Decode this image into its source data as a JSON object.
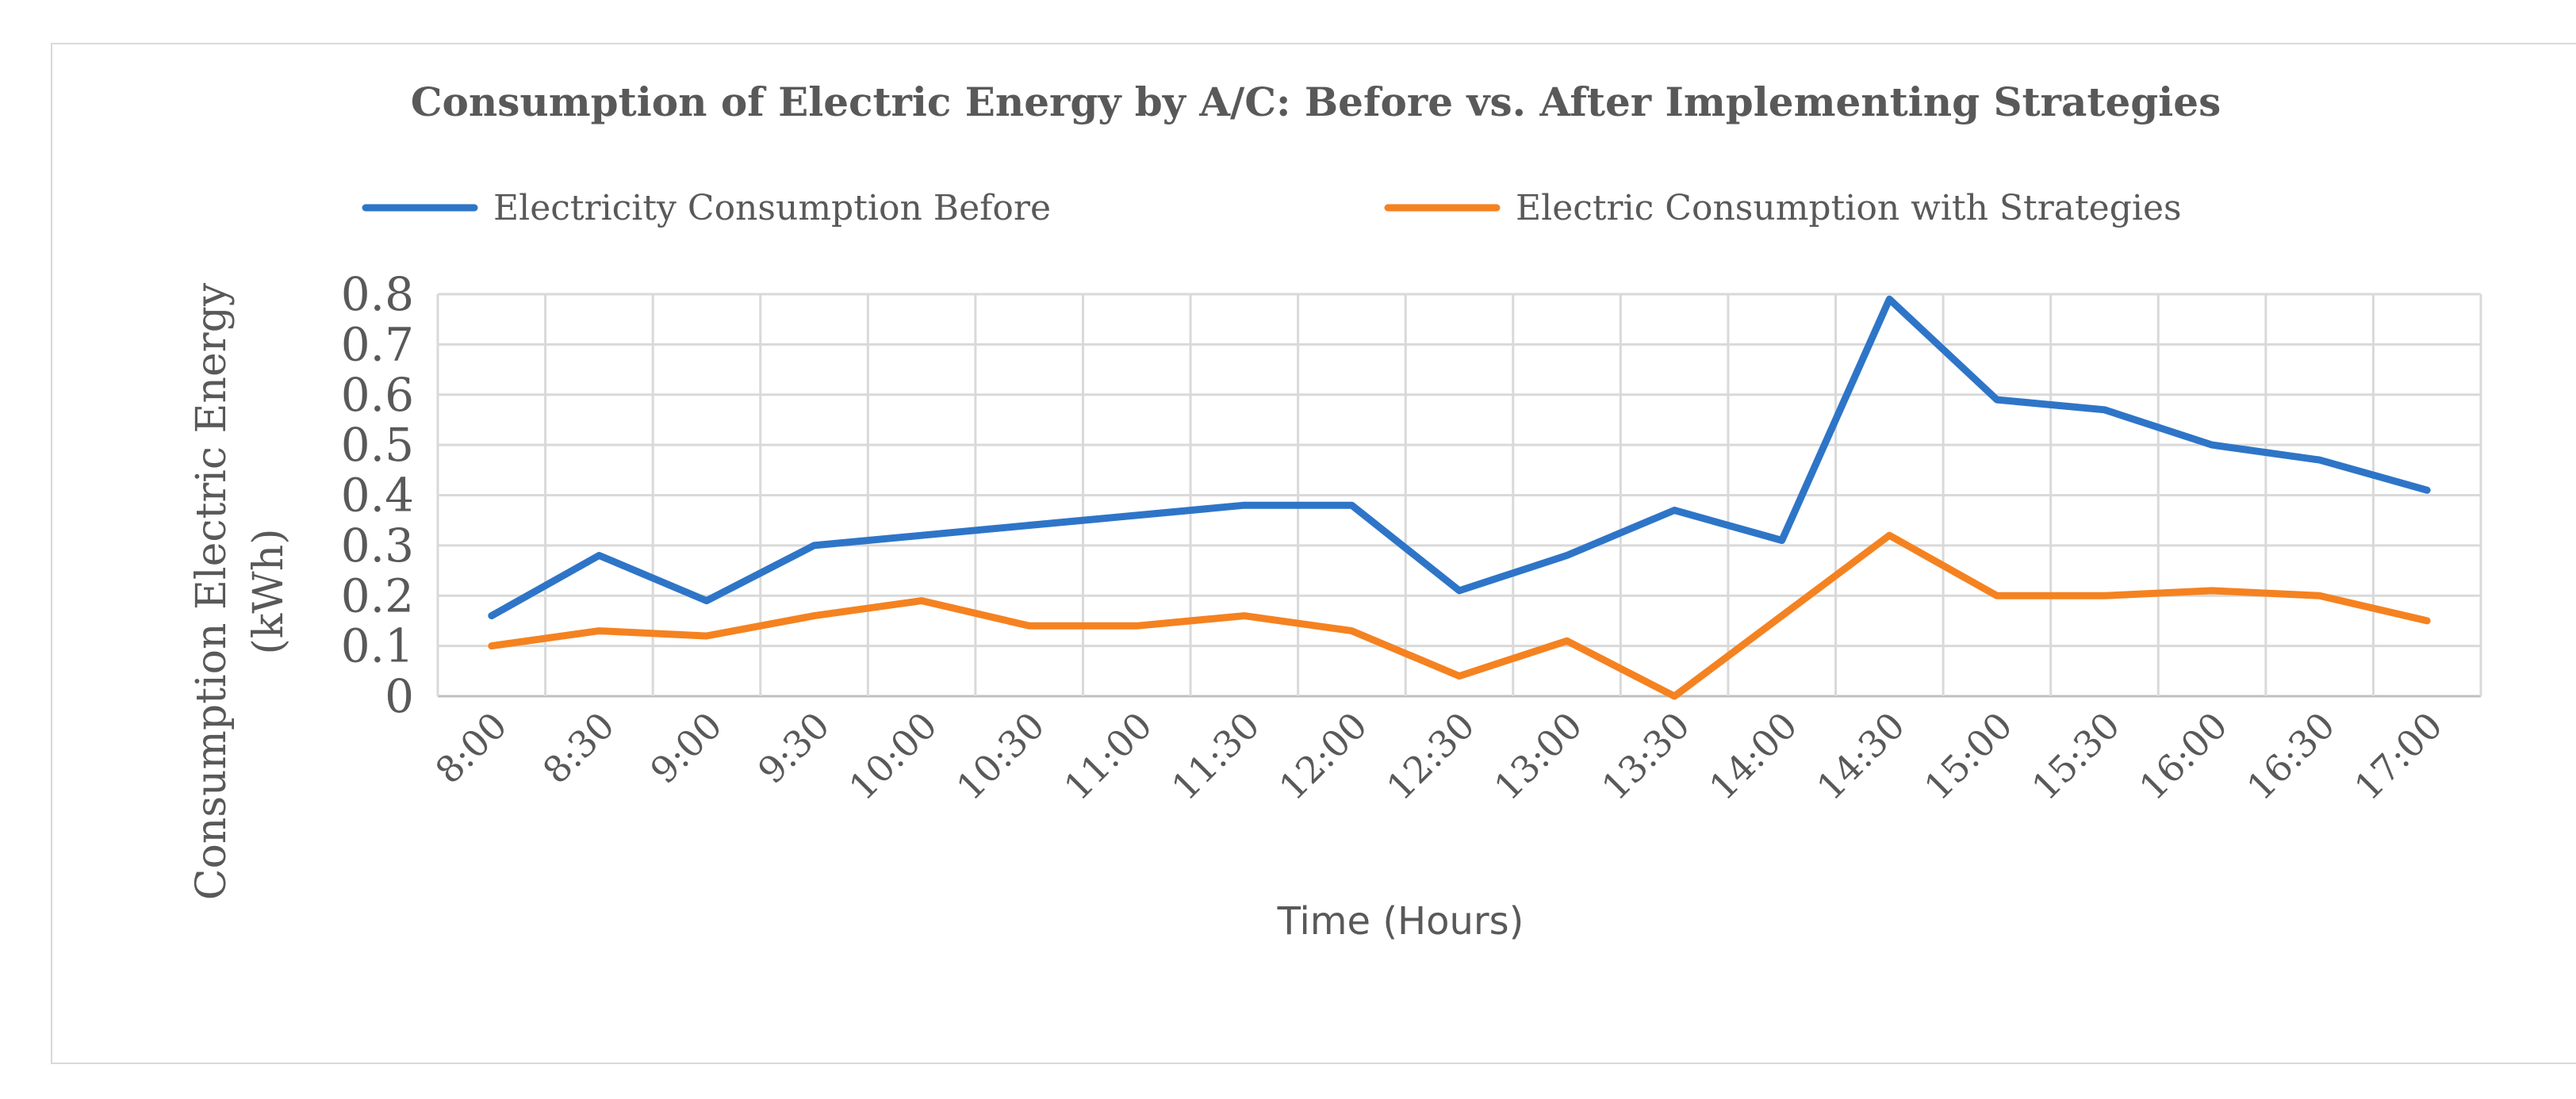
{
  "chart_data": {
    "type": "line",
    "title": "Consumption of Electric Energy by A/C: Before vs. After Implementing Strategies",
    "xlabel": "Time (Hours)",
    "ylabel_line1": "Consumption Electric Energy",
    "ylabel_line2": "(kWh)",
    "categories": [
      "8:00",
      "8:30",
      "9:00",
      "9:30",
      "10:00",
      "10:30",
      "11:00",
      "11:30",
      "12:00",
      "12:30",
      "13:00",
      "13:30",
      "14:00",
      "14:30",
      "15:00",
      "15:30",
      "16:00",
      "16:30",
      "17:00"
    ],
    "ylim": [
      0,
      0.8
    ],
    "yticks": [
      0,
      0.1,
      0.2,
      0.3,
      0.4,
      0.5,
      0.6,
      0.7,
      0.8
    ],
    "ytick_labels": [
      "0",
      "0.1",
      "0.2",
      "0.3",
      "0.4",
      "0.5",
      "0.6",
      "0.7",
      "0.8"
    ],
    "grid": true,
    "legend_position": "top",
    "series": [
      {
        "name": "Electricity Consumption Before",
        "color": "#2e75c8",
        "values": [
          0.16,
          0.28,
          0.19,
          0.3,
          0.32,
          0.34,
          0.36,
          0.38,
          0.38,
          0.21,
          0.28,
          0.37,
          0.31,
          0.79,
          0.59,
          0.57,
          0.5,
          0.47,
          0.41
        ]
      },
      {
        "name": "Electric Consumption with Strategies",
        "color": "#f58220",
        "values": [
          0.1,
          0.13,
          0.12,
          0.16,
          0.19,
          0.14,
          0.14,
          0.16,
          0.13,
          0.04,
          0.11,
          0.0,
          0.16,
          0.32,
          0.2,
          0.2,
          0.21,
          0.2,
          0.15
        ]
      }
    ]
  }
}
